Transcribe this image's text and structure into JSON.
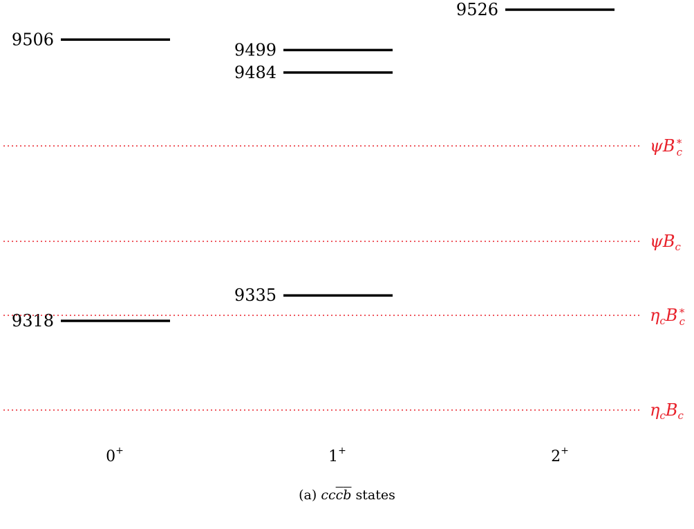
{
  "diagram": {
    "columns": [
      {
        "jp": "0",
        "jp_sup": "+",
        "levels": [
          9506,
          9318
        ]
      },
      {
        "jp": "1",
        "jp_sup": "+",
        "levels": [
          9499,
          9484,
          9335
        ]
      },
      {
        "jp": "2",
        "jp_sup": "+",
        "levels": [
          9526
        ]
      }
    ],
    "thresholds": [
      {
        "sym": "ψ",
        "B": "B",
        "sub": "c",
        "sup": "∗"
      },
      {
        "sym": "ψ",
        "B": "B",
        "sub": "c",
        "sup": ""
      },
      {
        "sym": "η",
        "sym_sub": "c",
        "B": "B",
        "sub": "c",
        "sup": "∗"
      },
      {
        "sym": "η",
        "sym_sub": "c",
        "B": "B",
        "sub": "c",
        "sup": ""
      }
    ],
    "colors": {
      "threshold": "#e8202a",
      "level": "#000000"
    }
  },
  "caption": {
    "prefix": "(a)",
    "math_c1": "c",
    "math_c2": "c",
    "math_cbar": "c",
    "math_bbar": "b",
    "suffix": "states"
  }
}
